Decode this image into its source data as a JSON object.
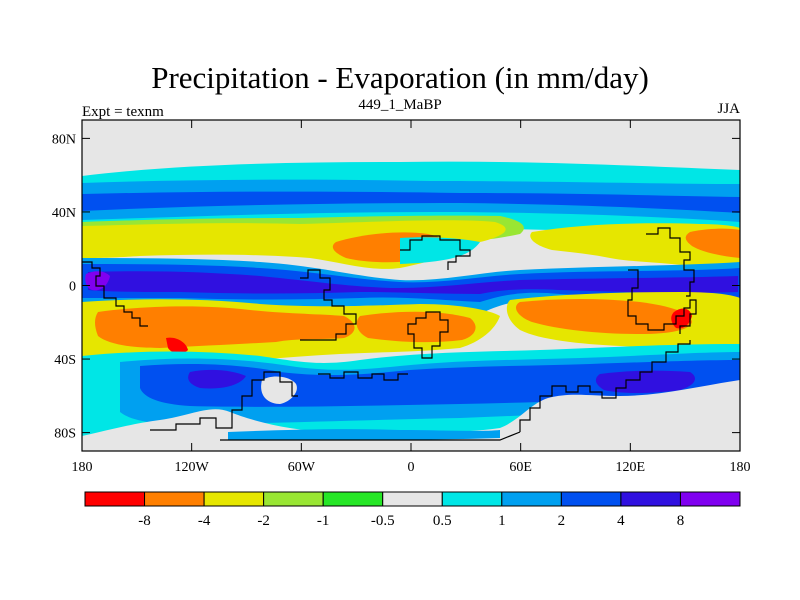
{
  "figure": {
    "title": "Precipitation - Evaporation (in mm/day)",
    "subtitle_left": "Expt = texnm",
    "subtitle_center": "449_1_MaBP",
    "subtitle_right": "JJA"
  },
  "map": {
    "lat_ticks": [
      "80N",
      "40N",
      "0",
      "40S",
      "80S"
    ],
    "lon_ticks": [
      "180",
      "120W",
      "60W",
      "0",
      "60E",
      "120E",
      "180"
    ],
    "lat_values": [
      80,
      40,
      0,
      -40,
      -80
    ],
    "lon_values": [
      -180,
      -120,
      -60,
      0,
      60,
      120,
      180
    ],
    "lon_range": [
      -180,
      180
    ],
    "lat_range": [
      -90,
      90
    ]
  },
  "colorbar": {
    "labels": [
      "-8",
      "-4",
      "-2",
      "-1",
      "-0.5",
      "0.5",
      "1",
      "2",
      "4",
      "8"
    ],
    "colors": [
      "#ff0000",
      "#ff7f00",
      "#e6e600",
      "#99e633",
      "#26e626",
      "#e6e6e6",
      "#00e6e6",
      "#00a0f0",
      "#0050f0",
      "#3010e0",
      "#8000f0"
    ]
  }
}
